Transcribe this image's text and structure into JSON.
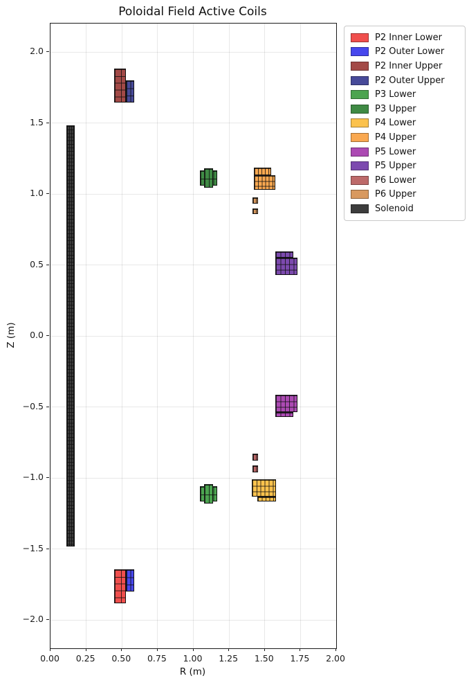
{
  "title": "Poloidal Field Active Coils",
  "axes": {
    "xlabel": "R (m)",
    "ylabel": "Z (m)",
    "xlim": [
      0.0,
      2.0
    ],
    "ylim": [
      -2.2,
      2.2
    ],
    "grid": true,
    "xticks": [
      {
        "value": 0.0,
        "label": "0.00"
      },
      {
        "value": 0.25,
        "label": "0.25"
      },
      {
        "value": 0.5,
        "label": "0.50"
      },
      {
        "value": 0.75,
        "label": "0.75"
      },
      {
        "value": 1.0,
        "label": "1.00"
      },
      {
        "value": 1.25,
        "label": "1.25"
      },
      {
        "value": 1.5,
        "label": "1.50"
      },
      {
        "value": 1.75,
        "label": "1.75"
      },
      {
        "value": 2.0,
        "label": "2.00"
      }
    ],
    "yticks": [
      {
        "value": -2.0,
        "label": "−2.0"
      },
      {
        "value": -1.5,
        "label": "−1.5"
      },
      {
        "value": -1.0,
        "label": "−1.0"
      },
      {
        "value": -0.5,
        "label": "−0.5"
      },
      {
        "value": 0.0,
        "label": "0.0"
      },
      {
        "value": 0.5,
        "label": "0.5"
      },
      {
        "value": 1.0,
        "label": "1.0"
      },
      {
        "value": 1.5,
        "label": "1.5"
      },
      {
        "value": 2.0,
        "label": "2.0"
      }
    ]
  },
  "legend": {
    "items": [
      {
        "label": "P2 Inner Lower",
        "color": "#f04f4d"
      },
      {
        "label": "P2 Outer Lower",
        "color": "#4747ed"
      },
      {
        "label": "P2 Inner Upper",
        "color": "#a34a47"
      },
      {
        "label": "P2 Outer Upper",
        "color": "#474a99"
      },
      {
        "label": "P3 Lower",
        "color": "#4ca450"
      },
      {
        "label": "P3 Upper",
        "color": "#3f8a44"
      },
      {
        "label": "P4 Lower",
        "color": "#fbc24d"
      },
      {
        "label": "P4 Upper",
        "color": "#f9a850"
      },
      {
        "label": "P5 Lower",
        "color": "#ac4ab3"
      },
      {
        "label": "P5 Upper",
        "color": "#7c4aaf"
      },
      {
        "label": "P6 Lower",
        "color": "#bd6a6a"
      },
      {
        "label": "P6 Upper",
        "color": "#d8995f"
      },
      {
        "label": "Solenoid",
        "color": "#3d3d3d"
      }
    ]
  },
  "chart_data": {
    "type": "scatter",
    "marker": "rectangular coil cross-sections drawn as grids of turn cells",
    "title": "Poloidal Field Active Coils",
    "xlabel": "R (m)",
    "ylabel": "Z (m)",
    "xlim": [
      0.0,
      2.0
    ],
    "ylim": [
      -2.2,
      2.2
    ],
    "grid": true,
    "legend_position": "outside upper right",
    "coils": [
      {
        "name": "Solenoid",
        "color": "#3d3d3d",
        "parts": [
          {
            "r": [
              0.111,
              0.169
            ],
            "z": [
              -1.485,
              1.485
            ],
            "cols": 4,
            "rows": 118
          }
        ]
      },
      {
        "name": "P2 Inner Upper",
        "color": "#a34a47",
        "parts": [
          {
            "r": [
              0.445,
              0.53
            ],
            "z": [
              1.645,
              1.885
            ],
            "cols": 2,
            "rows": 5
          }
        ]
      },
      {
        "name": "P2 Outer Upper",
        "color": "#474a99",
        "parts": [
          {
            "r": [
              0.53,
              0.585
            ],
            "z": [
              1.645,
              1.8
            ],
            "cols": 2,
            "rows": 3
          }
        ]
      },
      {
        "name": "P2 Inner Lower",
        "color": "#f04f4d",
        "parts": [
          {
            "r": [
              0.445,
              0.53
            ],
            "z": [
              -1.885,
              -1.645
            ],
            "cols": 2,
            "rows": 5
          }
        ]
      },
      {
        "name": "P2 Outer Lower",
        "color": "#4747ed",
        "parts": [
          {
            "r": [
              0.53,
              0.585
            ],
            "z": [
              -1.8,
              -1.645
            ],
            "cols": 2,
            "rows": 3
          }
        ]
      },
      {
        "name": "P3 Upper",
        "color": "#3f8a44",
        "parts": [
          {
            "r": [
              1.046,
              1.167
            ],
            "z": [
              1.058,
              1.164
            ],
            "cols": 4,
            "rows": 2
          },
          {
            "r": [
              1.077,
              1.137
            ],
            "z": [
              1.043,
              1.179
            ],
            "cols": 2,
            "rows": 2
          }
        ]
      },
      {
        "name": "P3 Lower",
        "color": "#4ca450",
        "parts": [
          {
            "r": [
              1.046,
              1.167
            ],
            "z": [
              -1.164,
              -1.058
            ],
            "cols": 4,
            "rows": 2
          },
          {
            "r": [
              1.077,
              1.137
            ],
            "z": [
              -1.179,
              -1.043
            ],
            "cols": 2,
            "rows": 2
          }
        ]
      },
      {
        "name": "P4 Upper",
        "color": "#f9a850",
        "parts": [
          {
            "r": [
              1.424,
              1.574
            ],
            "z": [
              1.027,
              1.134
            ],
            "cols": 6,
            "rows": 3
          },
          {
            "r": [
              1.424,
              1.545
            ],
            "z": [
              1.134,
              1.187
            ],
            "cols": 5,
            "rows": 1
          }
        ]
      },
      {
        "name": "P4 Lower",
        "color": "#fbc24d",
        "parts": [
          {
            "r": [
              1.41,
              1.58
            ],
            "z": [
              -1.134,
              -1.012
            ],
            "cols": 6,
            "rows": 3
          },
          {
            "r": [
              1.448,
              1.58
            ],
            "z": [
              -1.168,
              -1.134
            ],
            "cols": 5,
            "rows": 1
          }
        ]
      },
      {
        "name": "P5 Upper",
        "color": "#7c4aaf",
        "parts": [
          {
            "r": [
              1.574,
              1.729
            ],
            "z": [
              0.428,
              0.55
            ],
            "cols": 5,
            "rows": 3
          },
          {
            "r": [
              1.574,
              1.7
            ],
            "z": [
              0.55,
              0.594
            ],
            "cols": 4,
            "rows": 1
          }
        ]
      },
      {
        "name": "P5 Lower",
        "color": "#ac4ab3",
        "parts": [
          {
            "r": [
              1.574,
              1.729
            ],
            "z": [
              -0.535,
              -0.414
            ],
            "cols": 5,
            "rows": 3
          },
          {
            "r": [
              1.574,
              1.7
            ],
            "z": [
              -0.569,
              -0.535
            ],
            "cols": 4,
            "rows": 1
          }
        ]
      },
      {
        "name": "P6 Upper",
        "color": "#d8995f",
        "parts": [
          {
            "r": [
              1.414,
              1.453
            ],
            "z": [
              0.933,
              0.978
            ],
            "cols": 2,
            "rows": 1
          },
          {
            "r": [
              1.414,
              1.453
            ],
            "z": [
              0.86,
              0.9
            ],
            "cols": 2,
            "rows": 1
          }
        ]
      },
      {
        "name": "P6 Lower",
        "color": "#bd6a6a",
        "parts": [
          {
            "r": [
              1.414,
              1.453
            ],
            "z": [
              -0.879,
              -0.831
            ],
            "cols": 2,
            "rows": 1
          },
          {
            "r": [
              1.414,
              1.453
            ],
            "z": [
              -0.962,
              -0.913
            ],
            "cols": 2,
            "rows": 1
          }
        ]
      }
    ]
  }
}
